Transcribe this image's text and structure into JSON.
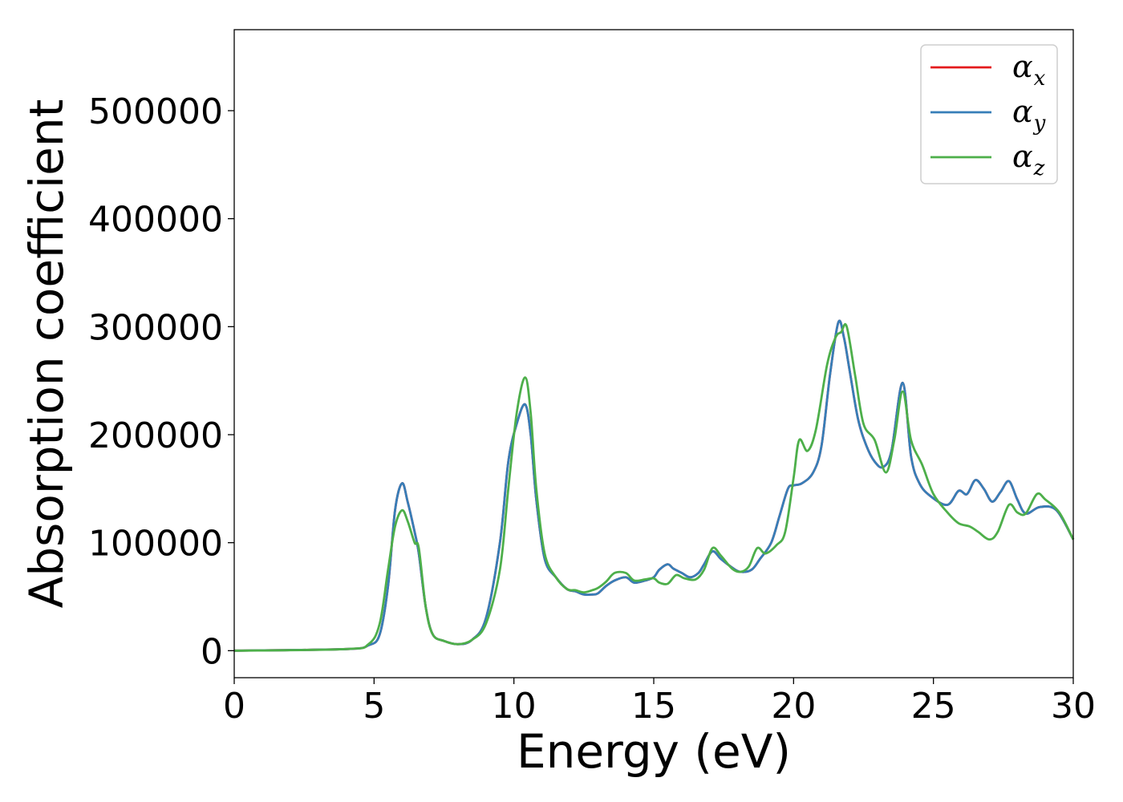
{
  "chart_data": {
    "type": "line",
    "xlabel": "Energy (eV)",
    "ylabel": "Absorption coefficient",
    "xlim": [
      0,
      30
    ],
    "ylim": [
      -25000,
      575000
    ],
    "xticks": [
      0,
      5,
      10,
      15,
      20,
      25,
      30
    ],
    "yticks": [
      0,
      100000,
      200000,
      300000,
      400000,
      500000
    ],
    "grid": false,
    "legend_position": "top-right",
    "series": [
      {
        "name": "α",
        "subscript": "x",
        "color": "#e41a1c",
        "points": [
          [
            0,
            0
          ],
          [
            4,
            1500
          ],
          [
            4.8,
            5000
          ],
          [
            5.2,
            15000
          ],
          [
            5.5,
            60000
          ],
          [
            5.75,
            130000
          ],
          [
            6.0,
            155000
          ],
          [
            6.2,
            138000
          ],
          [
            6.45,
            110000
          ],
          [
            6.6,
            90000
          ],
          [
            6.85,
            40000
          ],
          [
            7.1,
            15000
          ],
          [
            7.5,
            9000
          ],
          [
            8.0,
            6000
          ],
          [
            8.5,
            10000
          ],
          [
            9.0,
            30000
          ],
          [
            9.5,
            100000
          ],
          [
            9.8,
            175000
          ],
          [
            10.1,
            210000
          ],
          [
            10.4,
            228000
          ],
          [
            10.6,
            200000
          ],
          [
            10.8,
            140000
          ],
          [
            11.1,
            85000
          ],
          [
            11.5,
            68000
          ],
          [
            11.9,
            57000
          ],
          [
            12.2,
            55000
          ],
          [
            12.5,
            52000
          ],
          [
            12.8,
            52000
          ],
          [
            13.0,
            53000
          ],
          [
            13.3,
            60000
          ],
          [
            13.6,
            65000
          ],
          [
            14.0,
            68000
          ],
          [
            14.3,
            63000
          ],
          [
            14.7,
            65000
          ],
          [
            15.0,
            68000
          ],
          [
            15.2,
            75000
          ],
          [
            15.5,
            80000
          ],
          [
            15.7,
            76000
          ],
          [
            16.0,
            72000
          ],
          [
            16.3,
            68000
          ],
          [
            16.6,
            72000
          ],
          [
            16.8,
            80000
          ],
          [
            17.1,
            92000
          ],
          [
            17.4,
            85000
          ],
          [
            17.8,
            77000
          ],
          [
            18.1,
            73000
          ],
          [
            18.5,
            75000
          ],
          [
            18.8,
            85000
          ],
          [
            19.2,
            100000
          ],
          [
            19.5,
            125000
          ],
          [
            19.8,
            150000
          ],
          [
            20.0,
            153000
          ],
          [
            20.3,
            155000
          ],
          [
            20.7,
            165000
          ],
          [
            21.0,
            190000
          ],
          [
            21.3,
            255000
          ],
          [
            21.6,
            304000
          ],
          [
            21.8,
            290000
          ],
          [
            22.0,
            260000
          ],
          [
            22.3,
            215000
          ],
          [
            22.6,
            190000
          ],
          [
            22.9,
            175000
          ],
          [
            23.2,
            170000
          ],
          [
            23.5,
            185000
          ],
          [
            23.9,
            248000
          ],
          [
            24.2,
            180000
          ],
          [
            24.5,
            155000
          ],
          [
            24.9,
            143000
          ],
          [
            25.5,
            135000
          ],
          [
            25.9,
            148000
          ],
          [
            26.2,
            145000
          ],
          [
            26.5,
            158000
          ],
          [
            26.8,
            150000
          ],
          [
            27.1,
            138000
          ],
          [
            27.4,
            147000
          ],
          [
            27.7,
            157000
          ],
          [
            28.0,
            140000
          ],
          [
            28.3,
            127000
          ],
          [
            28.8,
            133000
          ],
          [
            29.4,
            130000
          ],
          [
            30.0,
            103000
          ]
        ]
      },
      {
        "name": "α",
        "subscript": "y",
        "color": "#377eb8",
        "points": [
          [
            0,
            0
          ],
          [
            4,
            1500
          ],
          [
            4.8,
            5000
          ],
          [
            5.2,
            15000
          ],
          [
            5.5,
            60000
          ],
          [
            5.75,
            130000
          ],
          [
            6.0,
            155000
          ],
          [
            6.2,
            138000
          ],
          [
            6.45,
            110000
          ],
          [
            6.6,
            90000
          ],
          [
            6.85,
            40000
          ],
          [
            7.1,
            15000
          ],
          [
            7.5,
            9000
          ],
          [
            8.0,
            6000
          ],
          [
            8.5,
            10000
          ],
          [
            9.0,
            30000
          ],
          [
            9.5,
            100000
          ],
          [
            9.8,
            175000
          ],
          [
            10.1,
            210000
          ],
          [
            10.4,
            228000
          ],
          [
            10.6,
            200000
          ],
          [
            10.8,
            140000
          ],
          [
            11.1,
            85000
          ],
          [
            11.5,
            68000
          ],
          [
            11.9,
            57000
          ],
          [
            12.2,
            55000
          ],
          [
            12.5,
            52000
          ],
          [
            12.8,
            52000
          ],
          [
            13.0,
            53000
          ],
          [
            13.3,
            60000
          ],
          [
            13.6,
            65000
          ],
          [
            14.0,
            68000
          ],
          [
            14.3,
            63000
          ],
          [
            14.7,
            65000
          ],
          [
            15.0,
            68000
          ],
          [
            15.2,
            75000
          ],
          [
            15.5,
            80000
          ],
          [
            15.7,
            76000
          ],
          [
            16.0,
            72000
          ],
          [
            16.3,
            68000
          ],
          [
            16.6,
            72000
          ],
          [
            16.8,
            80000
          ],
          [
            17.1,
            92000
          ],
          [
            17.4,
            85000
          ],
          [
            17.8,
            77000
          ],
          [
            18.1,
            73000
          ],
          [
            18.5,
            75000
          ],
          [
            18.8,
            85000
          ],
          [
            19.2,
            100000
          ],
          [
            19.5,
            125000
          ],
          [
            19.8,
            150000
          ],
          [
            20.0,
            153000
          ],
          [
            20.3,
            155000
          ],
          [
            20.7,
            165000
          ],
          [
            21.0,
            190000
          ],
          [
            21.3,
            255000
          ],
          [
            21.6,
            304000
          ],
          [
            21.8,
            290000
          ],
          [
            22.0,
            260000
          ],
          [
            22.3,
            215000
          ],
          [
            22.6,
            190000
          ],
          [
            22.9,
            175000
          ],
          [
            23.2,
            170000
          ],
          [
            23.5,
            185000
          ],
          [
            23.9,
            248000
          ],
          [
            24.2,
            180000
          ],
          [
            24.5,
            155000
          ],
          [
            24.9,
            143000
          ],
          [
            25.5,
            135000
          ],
          [
            25.9,
            148000
          ],
          [
            26.2,
            145000
          ],
          [
            26.5,
            158000
          ],
          [
            26.8,
            150000
          ],
          [
            27.1,
            138000
          ],
          [
            27.4,
            147000
          ],
          [
            27.7,
            157000
          ],
          [
            28.0,
            140000
          ],
          [
            28.3,
            127000
          ],
          [
            28.8,
            133000
          ],
          [
            29.4,
            130000
          ],
          [
            30.0,
            103000
          ]
        ]
      },
      {
        "name": "α",
        "subscript": "z",
        "color": "#4daf4a",
        "points": [
          [
            0,
            0
          ],
          [
            4,
            1500
          ],
          [
            4.8,
            6000
          ],
          [
            5.2,
            25000
          ],
          [
            5.5,
            75000
          ],
          [
            5.75,
            115000
          ],
          [
            6.0,
            130000
          ],
          [
            6.2,
            120000
          ],
          [
            6.45,
            100000
          ],
          [
            6.6,
            95000
          ],
          [
            6.85,
            40000
          ],
          [
            7.1,
            15000
          ],
          [
            7.5,
            9000
          ],
          [
            8.0,
            6000
          ],
          [
            8.5,
            10000
          ],
          [
            9.0,
            25000
          ],
          [
            9.5,
            75000
          ],
          [
            9.8,
            150000
          ],
          [
            10.1,
            220000
          ],
          [
            10.4,
            253000
          ],
          [
            10.6,
            220000
          ],
          [
            10.8,
            150000
          ],
          [
            11.1,
            90000
          ],
          [
            11.5,
            68000
          ],
          [
            11.9,
            57000
          ],
          [
            12.2,
            56000
          ],
          [
            12.5,
            54000
          ],
          [
            12.8,
            56000
          ],
          [
            13.0,
            58000
          ],
          [
            13.3,
            64000
          ],
          [
            13.6,
            72000
          ],
          [
            14.0,
            72000
          ],
          [
            14.3,
            65000
          ],
          [
            14.7,
            66000
          ],
          [
            15.0,
            67000
          ],
          [
            15.2,
            63000
          ],
          [
            15.5,
            62000
          ],
          [
            15.8,
            70000
          ],
          [
            16.1,
            67000
          ],
          [
            16.5,
            66000
          ],
          [
            16.8,
            75000
          ],
          [
            17.1,
            95000
          ],
          [
            17.4,
            88000
          ],
          [
            17.8,
            76000
          ],
          [
            18.1,
            73000
          ],
          [
            18.4,
            78000
          ],
          [
            18.7,
            95000
          ],
          [
            19.0,
            90000
          ],
          [
            19.4,
            98000
          ],
          [
            19.7,
            110000
          ],
          [
            20.0,
            160000
          ],
          [
            20.2,
            195000
          ],
          [
            20.5,
            185000
          ],
          [
            20.8,
            205000
          ],
          [
            21.2,
            265000
          ],
          [
            21.5,
            290000
          ],
          [
            21.7,
            295000
          ],
          [
            21.9,
            300000
          ],
          [
            22.2,
            255000
          ],
          [
            22.5,
            210000
          ],
          [
            22.9,
            195000
          ],
          [
            23.3,
            165000
          ],
          [
            23.6,
            195000
          ],
          [
            23.9,
            240000
          ],
          [
            24.2,
            195000
          ],
          [
            24.6,
            172000
          ],
          [
            25.0,
            145000
          ],
          [
            25.5,
            128000
          ],
          [
            25.9,
            118000
          ],
          [
            26.3,
            115000
          ],
          [
            26.6,
            110000
          ],
          [
            27.0,
            103000
          ],
          [
            27.3,
            110000
          ],
          [
            27.7,
            135000
          ],
          [
            28.0,
            128000
          ],
          [
            28.3,
            127000
          ],
          [
            28.7,
            145000
          ],
          [
            29.0,
            140000
          ],
          [
            29.5,
            128000
          ],
          [
            30.0,
            103000
          ]
        ]
      }
    ]
  }
}
